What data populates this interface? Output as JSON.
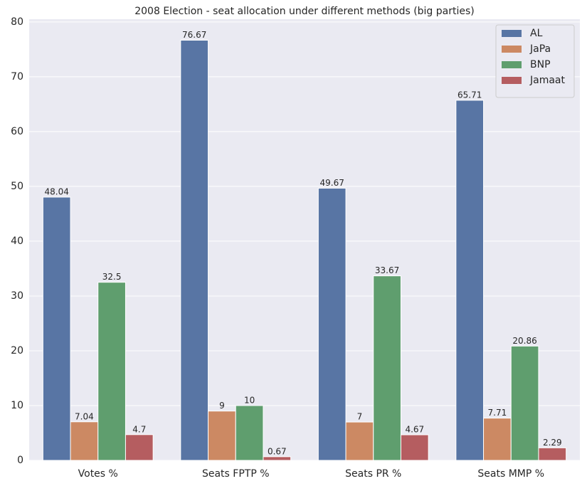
{
  "chart_data": {
    "type": "bar",
    "title": "2008 Election - seat allocation under different methods (big parties)",
    "categories": [
      "Votes %",
      "Seats FPTP %",
      "Seats PR %",
      "Seats MMP %"
    ],
    "series": [
      {
        "name": "AL",
        "color": "#5875a4",
        "values": [
          48.04,
          76.67,
          49.67,
          65.71
        ]
      },
      {
        "name": "JaPa",
        "color": "#cc8963",
        "values": [
          7.04,
          9,
          7,
          7.71
        ]
      },
      {
        "name": "BNP",
        "color": "#5f9e6e",
        "values": [
          32.5,
          10,
          33.67,
          20.86
        ]
      },
      {
        "name": "Jamaat",
        "color": "#b55d60",
        "values": [
          4.7,
          0.67,
          4.67,
          2.29
        ]
      }
    ],
    "ylim": [
      0,
      80.5
    ],
    "yticks": [
      0,
      10,
      20,
      30,
      40,
      50,
      60,
      70,
      80
    ],
    "grid": true,
    "legend": "upper right"
  }
}
